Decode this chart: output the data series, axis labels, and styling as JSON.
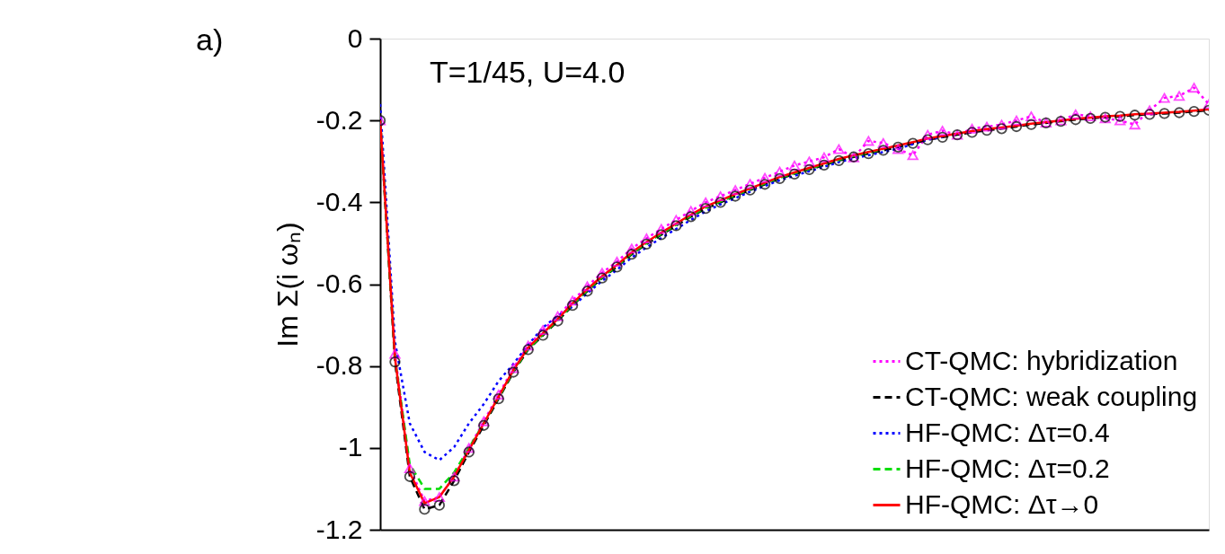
{
  "chart_data": {
    "type": "line",
    "ylabel": "Im Σ(i ωₙ)",
    "annotations": [
      "a)",
      "T=1/45, U=4.0"
    ],
    "categories": [
      null,
      null,
      null,
      null,
      null,
      null,
      null,
      null,
      null,
      null,
      null,
      null,
      null,
      null,
      null,
      null,
      null,
      null,
      null,
      null,
      null,
      null,
      null,
      null,
      null,
      null,
      null,
      null,
      null,
      null,
      null,
      null,
      null,
      null,
      null,
      null,
      null,
      null,
      null,
      null,
      null,
      null,
      null,
      null,
      null,
      null,
      null,
      null,
      null,
      null,
      null,
      null,
      null,
      null,
      null,
      null,
      null
    ],
    "series": [
      {
        "name": "CT-QMC: hybridization",
        "color": "#ff00ff",
        "marker": "triangle",
        "line_style": "dotted",
        "values": [
          -0.2,
          -0.77,
          -1.05,
          -1.13,
          -1.12,
          -1.07,
          -1.0,
          -0.935,
          -0.87,
          -0.805,
          -0.75,
          -0.712,
          -0.678,
          -0.64,
          -0.605,
          -0.572,
          -0.545,
          -0.513,
          -0.488,
          -0.465,
          -0.443,
          -0.421,
          -0.4,
          -0.385,
          -0.37,
          -0.355,
          -0.34,
          -0.325,
          -0.31,
          -0.3,
          -0.29,
          -0.27,
          -0.29,
          -0.25,
          -0.255,
          -0.27,
          -0.285,
          -0.235,
          -0.225,
          -0.235,
          -0.22,
          -0.215,
          -0.21,
          -0.2,
          -0.19,
          -0.205,
          -0.2,
          -0.185,
          -0.19,
          -0.195,
          -0.2,
          -0.21,
          -0.175,
          -0.145,
          -0.14,
          -0.12,
          -0.16
        ]
      },
      {
        "name": "CT-QMC: weak coupling",
        "color": "#000000",
        "marker": "circle",
        "line_style": "dashed",
        "values": [
          -0.2,
          -0.79,
          -1.07,
          -1.15,
          -1.14,
          -1.08,
          -1.01,
          -0.945,
          -0.88,
          -0.815,
          -0.76,
          -0.725,
          -0.69,
          -0.652,
          -0.617,
          -0.585,
          -0.558,
          -0.527,
          -0.502,
          -0.479,
          -0.457,
          -0.435,
          -0.415,
          -0.4,
          -0.385,
          -0.37,
          -0.356,
          -0.342,
          -0.331,
          -0.32,
          -0.309,
          -0.298,
          -0.289,
          -0.281,
          -0.273,
          -0.265,
          -0.256,
          -0.247,
          -0.241,
          -0.235,
          -0.229,
          -0.224,
          -0.22,
          -0.215,
          -0.21,
          -0.206,
          -0.202,
          -0.198,
          -0.195,
          -0.192,
          -0.19,
          -0.187,
          -0.185,
          -0.183,
          -0.181,
          -0.178,
          -0.175
        ]
      },
      {
        "name": "HF-QMC: Δτ=0.4",
        "color": "#0000ff",
        "marker": "none",
        "line_style": "dotted",
        "values": [
          -0.16,
          -0.74,
          -0.94,
          -1.01,
          -1.03,
          -0.998,
          -0.94,
          -0.893,
          -0.837,
          -0.795,
          -0.748,
          -0.706,
          -0.677,
          -0.655,
          -0.622,
          -0.592,
          -0.565,
          -0.535,
          -0.51,
          -0.487,
          -0.465,
          -0.443,
          -0.422,
          -0.405,
          -0.39,
          -0.374,
          -0.36,
          -0.346,
          -0.335,
          -0.324,
          -0.313,
          -0.302,
          -0.293,
          -0.285,
          -0.277,
          -0.269,
          -0.258,
          -0.247,
          -0.24,
          null,
          null,
          null,
          null,
          null,
          null,
          null,
          null,
          null,
          null,
          null,
          null,
          null,
          null,
          null,
          null,
          null,
          null
        ]
      },
      {
        "name": "HF-QMC: Δτ=0.2",
        "color": "#00dd00",
        "marker": "none",
        "line_style": "dashed",
        "values": [
          -0.2,
          -0.78,
          -1.04,
          -1.1,
          -1.1,
          -1.06,
          -1.0,
          -0.94,
          -0.877,
          -0.813,
          -0.758,
          -0.723,
          -0.688,
          -0.65,
          -0.615,
          -0.583,
          -0.556,
          -0.525,
          -0.5,
          -0.477,
          -0.455,
          -0.433,
          -0.413,
          -0.398,
          -0.383,
          -0.368,
          -0.354,
          -0.34,
          -0.329,
          -0.318,
          -0.307,
          -0.296,
          -0.287,
          -0.279,
          -0.27,
          null,
          null,
          null,
          null,
          null,
          null,
          null,
          null,
          null,
          null,
          null,
          null,
          null,
          null,
          null,
          null,
          null,
          null,
          null,
          null,
          null,
          null
        ]
      },
      {
        "name": "HF-QMC: Δτ→0",
        "color": "#ff0000",
        "marker": "none",
        "line_style": "solid",
        "values": [
          -0.2,
          -0.78,
          -1.06,
          -1.135,
          -1.12,
          -1.07,
          -1.005,
          -0.94,
          -0.875,
          -0.81,
          -0.755,
          -0.72,
          -0.685,
          -0.647,
          -0.612,
          -0.58,
          -0.553,
          -0.522,
          -0.497,
          -0.474,
          -0.452,
          -0.43,
          -0.41,
          -0.395,
          -0.38,
          -0.366,
          -0.352,
          -0.338,
          -0.327,
          -0.316,
          -0.305,
          -0.294,
          -0.285,
          -0.277,
          -0.269,
          -0.261,
          -0.253,
          -0.244,
          -0.238,
          -0.232,
          -0.226,
          -0.221,
          -0.217,
          -0.213,
          -0.208,
          -0.204,
          -0.2,
          -0.196,
          -0.193,
          -0.19,
          -0.188,
          -0.185,
          -0.183,
          -0.181,
          -0.179,
          -0.176,
          -0.173
        ]
      }
    ],
    "ylim": [
      -1.2,
      0
    ],
    "yticks": [
      -1.2,
      -1,
      -0.8,
      -0.6,
      -0.4,
      -0.2,
      0
    ],
    "grid": false,
    "legend": "bottom right"
  }
}
